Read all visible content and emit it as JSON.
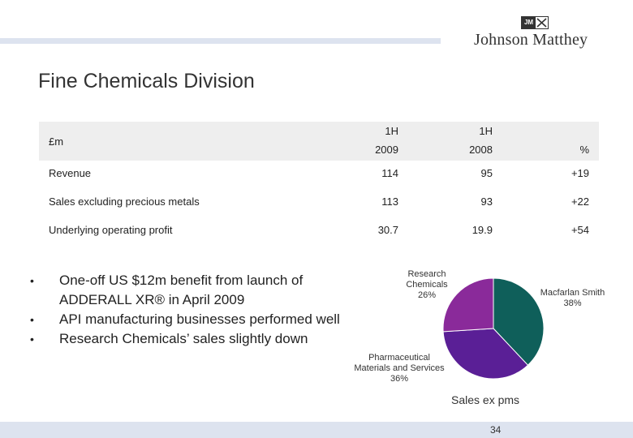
{
  "brand": {
    "badge_text": "JM",
    "name": "Johnson Matthey"
  },
  "title": "Fine Chemicals Division",
  "table": {
    "headers": {
      "label": "£m",
      "col1_line1": "1H",
      "col1_line2": "2009",
      "col2_line1": "1H",
      "col2_line2": "2008",
      "col3": "%"
    },
    "rows": [
      {
        "label": "Revenue",
        "v2009": "114",
        "v2008": "95",
        "pct": "+19"
      },
      {
        "label": "Sales excluding precious metals",
        "v2009": "113",
        "v2008": "93",
        "pct": "+22"
      },
      {
        "label": "Underlying operating profit",
        "v2009": "30.7",
        "v2008": "19.9",
        "pct": "+54"
      }
    ]
  },
  "bullets": [
    {
      "marker": "•",
      "text": "One-off US $12m benefit from launch of ADDERALL XR® in April 2009"
    },
    {
      "marker": "•",
      "text": "API manufacturing businesses performed well"
    },
    {
      "marker": "•",
      "text": "Research Chemicals’ sales slightly down"
    }
  ],
  "chart_data": {
    "type": "pie",
    "title": "Sales ex pms",
    "slices": [
      {
        "name": "Macfarlan Smith",
        "label_name": "Macfarlan Smith",
        "label_pct": "38%",
        "value": 38,
        "color": "#0f5f5a"
      },
      {
        "name": "Pharmaceutical Materials and Services",
        "label_line1": "Pharmaceutical",
        "label_line2": "Materials and Services",
        "label_pct": "36%",
        "value": 36,
        "color": "#5a1f96"
      },
      {
        "name": "Research Chemicals",
        "label_line1": "Research",
        "label_line2": "Chemicals",
        "label_pct": "26%",
        "value": 26,
        "color": "#8a2a9a"
      }
    ]
  },
  "page_number": "34"
}
